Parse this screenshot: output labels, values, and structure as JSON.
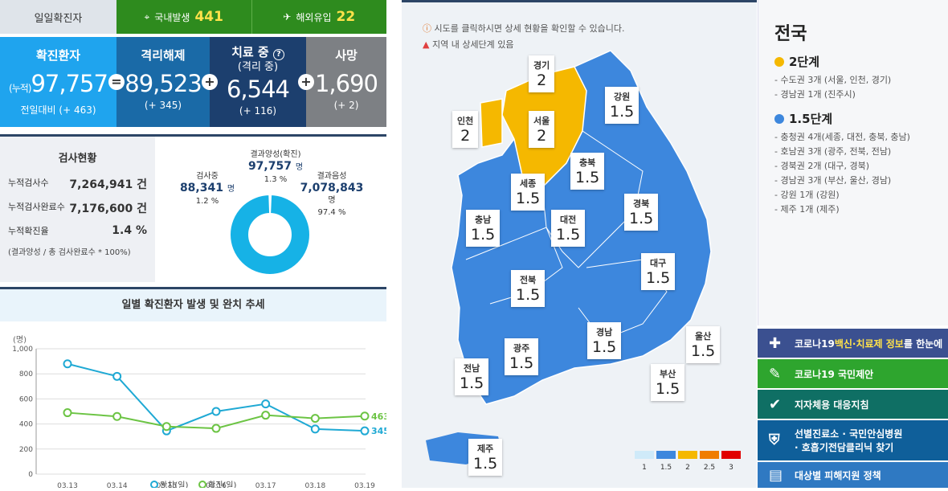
{
  "daily": {
    "label": "일일확진자",
    "domestic_label": "국내발생",
    "domestic": "441",
    "overseas_label": "해외유입",
    "overseas": "22"
  },
  "stats": {
    "confirmed": {
      "title": "확진환자",
      "prefix": "(누적)",
      "value": "97,757",
      "sub": "전일대비 (+ 463)"
    },
    "released": {
      "title": "격리해제",
      "value": "89,523",
      "sub": "(+ 345)"
    },
    "treating": {
      "title": "치료 중",
      "title2": "(격리 중)",
      "value": "6,544",
      "sub": "(+ 116)"
    },
    "deaths": {
      "title": "사망",
      "value": "1,690",
      "sub": "(+ 2)"
    },
    "ops": [
      "=",
      "+",
      "+"
    ]
  },
  "test": {
    "title": "검사현황",
    "rows": [
      {
        "label": "누적검사수",
        "value": "7,264,941 건"
      },
      {
        "label": "누적검사완료수",
        "value": "7,176,600 건"
      },
      {
        "label": "누적확진율",
        "value": "1.4 %"
      }
    ],
    "note": "(결과양성 / 총 검사완료수 * 100%)",
    "testing": {
      "label": "검사중",
      "value": "88,341",
      "unit": "명",
      "pct": "1.2 %"
    },
    "positive": {
      "label": "결과양성(확진)",
      "value": "97,757",
      "unit": "명",
      "pct": "1.3 %"
    },
    "negative": {
      "label": "결과음성",
      "value": "7,078,843",
      "unit": "명",
      "pct": "97.4 %"
    }
  },
  "chart_data": {
    "type": "line",
    "title": "일별 확진환자 발생 및 완치 추세",
    "ylabel": "(명)",
    "ylim": [
      0,
      1000
    ],
    "yticks": [
      "0",
      "200",
      "400",
      "600",
      "800",
      "1,000"
    ],
    "categories": [
      "03.13",
      "03.14",
      "03.15",
      "03.16",
      "03.17",
      "03.18",
      "03.19"
    ],
    "series": [
      {
        "name": "완치(일)",
        "color": "#1fa9d4",
        "values": [
          880,
          780,
          345,
          500,
          560,
          360,
          345
        ]
      },
      {
        "name": "확진(일)",
        "color": "#6cc444",
        "values": [
          490,
          460,
          380,
          365,
          470,
          445,
          463
        ]
      }
    ],
    "end_labels": [
      "345",
      "463"
    ]
  },
  "map": {
    "notice": "시도를 클릭하시면 상세 현황을 확인할 수 있습니다.",
    "warn": "지역 내 상세단계 있음",
    "regions": [
      {
        "name": "경기",
        "v": "2"
      },
      {
        "name": "강원",
        "v": "1.5"
      },
      {
        "name": "인천",
        "v": "2"
      },
      {
        "name": "서울",
        "v": "2"
      },
      {
        "name": "충북",
        "v": "1.5"
      },
      {
        "name": "세종",
        "v": "1.5"
      },
      {
        "name": "경북",
        "v": "1.5"
      },
      {
        "name": "충남",
        "v": "1.5"
      },
      {
        "name": "대전",
        "v": "1.5"
      },
      {
        "name": "대구",
        "v": "1.5"
      },
      {
        "name": "전북",
        "v": "1.5"
      },
      {
        "name": "경남",
        "v": "1.5"
      },
      {
        "name": "울산",
        "v": "1.5"
      },
      {
        "name": "광주",
        "v": "1.5"
      },
      {
        "name": "전남",
        "v": "1.5"
      },
      {
        "name": "부산",
        "v": "1.5"
      },
      {
        "name": "제주",
        "v": "1.5"
      }
    ],
    "legend": [
      "1",
      "1.5",
      "2",
      "2.5",
      "3"
    ],
    "legend_colors": [
      "#cfeaf9",
      "#3d87dd",
      "#f5b800",
      "#f07d00",
      "#e10000"
    ]
  },
  "nation": {
    "title": "전국",
    "lvl2": {
      "label": "2단계",
      "color": "#f5b800",
      "items": [
        "- 수도권 3개 (서울, 인천, 경기)",
        "- 경남권 1개 (진주시)"
      ]
    },
    "lvl15": {
      "label": "1.5단계",
      "color": "#3d87dd",
      "items": [
        "- 충청권 4개(세종, 대전, 충북, 충남)",
        "- 호남권 3개 (광주, 전북, 전남)",
        "- 경북권 2개 (대구, 경북)",
        "- 경남권 3개 (부산, 울산, 경남)",
        "- 강원 1개 (강원)",
        "- 제주 1개 (제주)"
      ]
    }
  },
  "buttons": [
    {
      "pre": "코로나19 ",
      "hl": "백신·치료제 정보",
      "post": "를 한눈에",
      "color": "#3b5090",
      "icon": "💉"
    },
    {
      "pre": "코로나19 국민제안",
      "hl": "",
      "post": "",
      "color": "#2ea52e",
      "icon": "✎"
    },
    {
      "pre": "지자체용 대응지침",
      "hl": "",
      "post": "",
      "color": "#0f6f64",
      "icon": "✔"
    },
    {
      "pre": "선별진료소 · 국민안심병원",
      "hl": "",
      "post": "· 호흡기전담클리닉 찾기",
      "color": "#0f5f9a",
      "icon": "⛨"
    },
    {
      "pre": "대상별 피해지원 정책",
      "hl": "",
      "post": "",
      "color": "#2f79c2",
      "icon": "▤"
    }
  ]
}
